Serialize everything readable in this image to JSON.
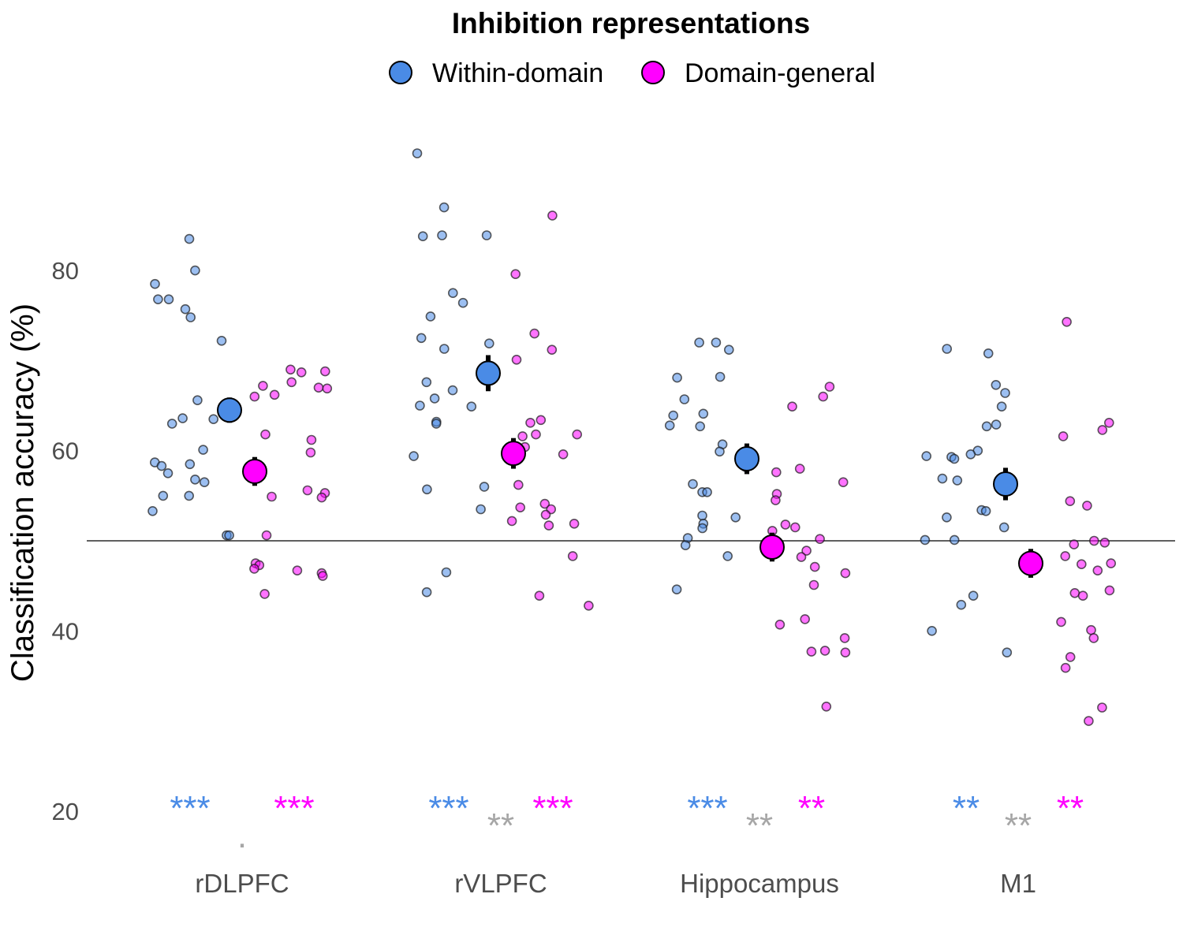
{
  "chart_data": {
    "type": "scatter",
    "title": "",
    "xlabel": "",
    "ylabel": "Classification accuracy (%)",
    "ylim": [
      17,
      96
    ],
    "yticks": [
      20,
      40,
      60,
      80
    ],
    "grid": false,
    "reference_line": 50,
    "legend": {
      "title": "Inhibition representations",
      "position": "top",
      "entries": [
        {
          "name": "Within-domain",
          "color": "#4a8be6"
        },
        {
          "name": "Domain-general",
          "color": "#ff00ff"
        }
      ]
    },
    "categories": [
      "rDLPFC",
      "rVLPFC",
      "Hippocampus",
      "M1"
    ],
    "series": [
      {
        "name": "Within-domain",
        "color": "#4a8be6",
        "means": [
          64.5,
          68.6,
          59.1,
          56.3
        ],
        "errors": [
          1.4,
          2.0,
          1.7,
          1.8
        ],
        "significance": [
          "***",
          "***",
          "***",
          "**"
        ],
        "points": [
          [
            83.5,
            80.0,
            76.8,
            76.8,
            75.7,
            74.8,
            78.5,
            72.2,
            65.6,
            63.6,
            63.0,
            63.5,
            60.1,
            58.7,
            58.5,
            57.5,
            56.5,
            58.3,
            56.8,
            55.0,
            55.0,
            53.3,
            50.6,
            50.6
          ],
          [
            93.0,
            87.0,
            83.9,
            83.8,
            83.9,
            77.5,
            76.4,
            74.9,
            72.5,
            71.9,
            71.3,
            67.6,
            66.7,
            65.8,
            65.0,
            64.9,
            63.2,
            63.0,
            59.4,
            56.0,
            55.7,
            53.5,
            46.5,
            44.3
          ],
          [
            72.0,
            72.0,
            71.2,
            68.2,
            68.1,
            65.7,
            64.1,
            63.9,
            62.8,
            62.7,
            60.7,
            59.9,
            58.2,
            56.3,
            55.4,
            55.4,
            52.8,
            52.6,
            51.9,
            51.4,
            50.3,
            49.5,
            48.3,
            44.6
          ],
          [
            71.3,
            70.8,
            67.3,
            66.4,
            64.9,
            62.9,
            62.7,
            60.0,
            59.6,
            59.4,
            59.3,
            59.1,
            56.9,
            56.7,
            53.4,
            53.3,
            52.6,
            51.5,
            50.1,
            50.1,
            43.9,
            42.9,
            40.0,
            37.6
          ]
        ]
      },
      {
        "name": "Domain-general",
        "color": "#ff00ff",
        "means": [
          57.7,
          59.7,
          49.3,
          47.5
        ],
        "errors": [
          1.6,
          1.7,
          1.6,
          1.6
        ],
        "significance": [
          "***",
          "***",
          "**",
          "**"
        ],
        "points": [
          [
            69.0,
            68.8,
            68.7,
            67.6,
            67.2,
            67.0,
            66.9,
            66.2,
            66.0,
            61.8,
            61.2,
            59.8,
            55.6,
            55.3,
            54.9,
            54.8,
            50.6,
            47.5,
            47.3,
            46.9,
            46.7,
            46.4,
            46.1,
            44.1
          ],
          [
            86.1,
            79.6,
            73.0,
            71.2,
            70.1,
            63.4,
            63.1,
            61.8,
            61.8,
            61.6,
            60.4,
            60.1,
            59.6,
            56.2,
            54.1,
            53.7,
            53.5,
            52.9,
            52.2,
            51.9,
            51.7,
            48.3,
            43.9,
            42.8
          ],
          [
            67.1,
            66.0,
            64.9,
            58.0,
            57.6,
            56.5,
            55.2,
            54.5,
            51.8,
            51.5,
            51.1,
            50.2,
            48.9,
            48.2,
            47.1,
            46.4,
            45.1,
            41.3,
            40.7,
            39.2,
            37.8,
            37.7,
            37.6,
            31.6
          ],
          [
            74.3,
            63.1,
            62.3,
            61.6,
            54.4,
            53.9,
            50.0,
            49.8,
            49.6,
            47.5,
            47.4,
            46.7,
            48.3,
            47.9,
            44.5,
            44.2,
            43.9,
            41.0,
            40.1,
            39.2,
            37.1,
            35.9,
            31.5,
            30.0
          ]
        ]
      }
    ],
    "comparison_significance": [
      ".",
      "**",
      "**",
      "**"
    ],
    "colors": {
      "within": "#4a8be6",
      "general": "#ff00ff",
      "comparison": "#a6a6a6",
      "axis_text": "#4d4d4d"
    }
  }
}
